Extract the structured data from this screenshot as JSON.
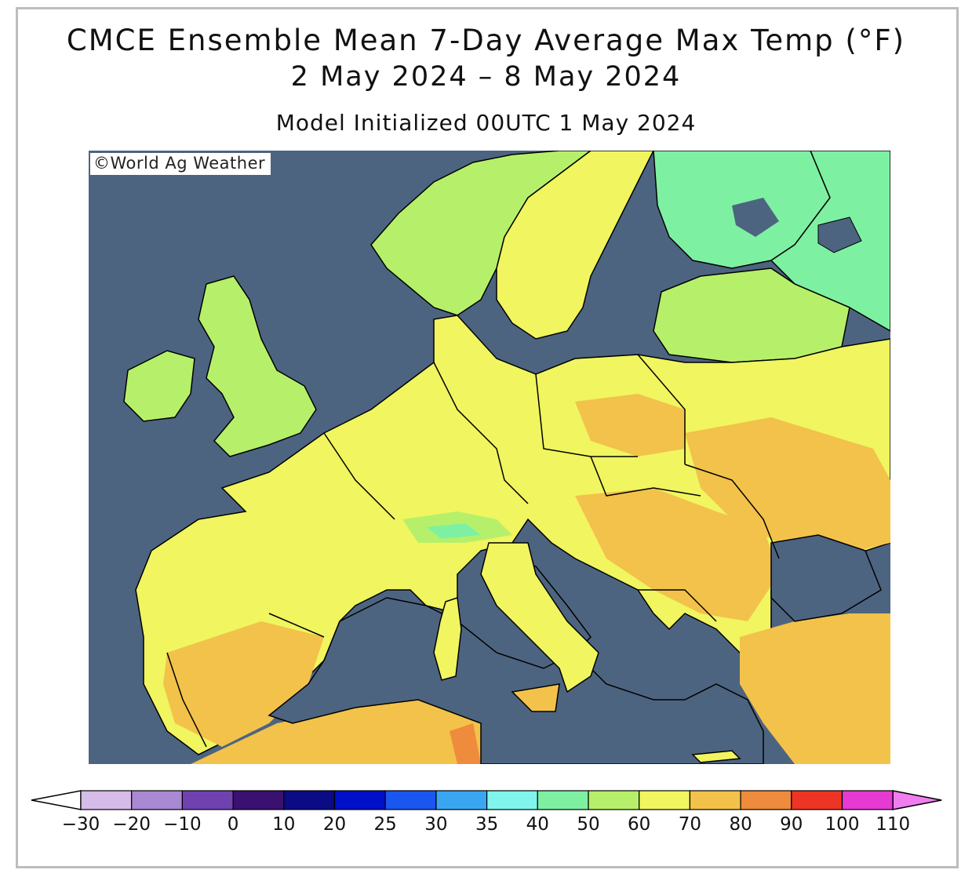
{
  "header": {
    "title": "CMCE Ensemble Mean 7-Day Average Max Temp (°F)",
    "date_range": "2 May 2024 – 8 May 2024",
    "init": "Model Initialized 00UTC 1 May 2024"
  },
  "credit": "©World Ag Weather",
  "colors": {
    "sea": "#4d6480",
    "t40": "#7ef0a2",
    "t50": "#b6f06a",
    "t60": "#f0f560",
    "t70": "#f2c24a",
    "t80": "#ef8b3c",
    "t35": "#7ff5ee"
  },
  "legend": {
    "bins": [
      {
        "label": "-30",
        "color": "#ffffff"
      },
      {
        "label": "-20",
        "color": "#d6bce8"
      },
      {
        "label": "-10",
        "color": "#a988d4"
      },
      {
        "label": "0",
        "color": "#7042b0"
      },
      {
        "label": "10",
        "color": "#3a1070"
      },
      {
        "label": "20",
        "color": "#0b0b86"
      },
      {
        "label": "25",
        "color": "#0010c8"
      },
      {
        "label": "30",
        "color": "#1a56f0"
      },
      {
        "label": "35",
        "color": "#3aa6f2"
      },
      {
        "label": "40",
        "color": "#7ff5ee"
      },
      {
        "label": "50",
        "color": "#7ef0a2"
      },
      {
        "label": "60",
        "color": "#b6f06a"
      },
      {
        "label": "70",
        "color": "#f0f560"
      },
      {
        "label": "80",
        "color": "#f2c24a"
      },
      {
        "label": "90",
        "color": "#ef8b3c"
      },
      {
        "label": "100",
        "color": "#ee3525"
      },
      {
        "label": "110",
        "color": "#e63ad2"
      }
    ],
    "over_color": "#f07ef0",
    "under_color": "#ffffff"
  }
}
